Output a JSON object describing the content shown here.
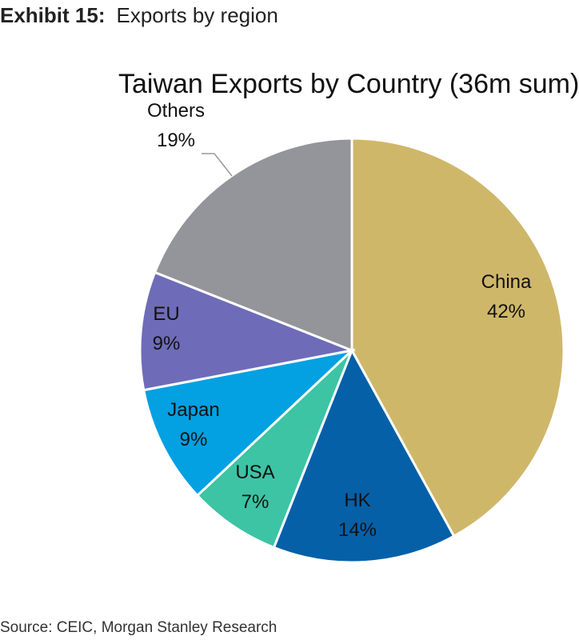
{
  "header": {
    "exhibit_number": "Exhibit 15:",
    "exhibit_title": "Exports by region"
  },
  "chart_data": {
    "type": "pie",
    "title": "Taiwan Exports by Country (36m sum)",
    "slices": [
      {
        "label": "China",
        "value": 42,
        "pct_label": "42%",
        "color": "#cfb76a"
      },
      {
        "label": "HK",
        "value": 14,
        "pct_label": "14%",
        "color": "#0560a8"
      },
      {
        "label": "USA",
        "value": 7,
        "pct_label": "7%",
        "color": "#3cc4a4"
      },
      {
        "label": "Japan",
        "value": 9,
        "pct_label": "9%",
        "color": "#03a0e2"
      },
      {
        "label": "EU",
        "value": 9,
        "pct_label": "9%",
        "color": "#6e6cb8"
      },
      {
        "label": "Others",
        "value": 19,
        "pct_label": "19%",
        "color": "#94959a"
      }
    ]
  },
  "footer": {
    "source": "Source: CEIC, Morgan Stanley Research"
  }
}
